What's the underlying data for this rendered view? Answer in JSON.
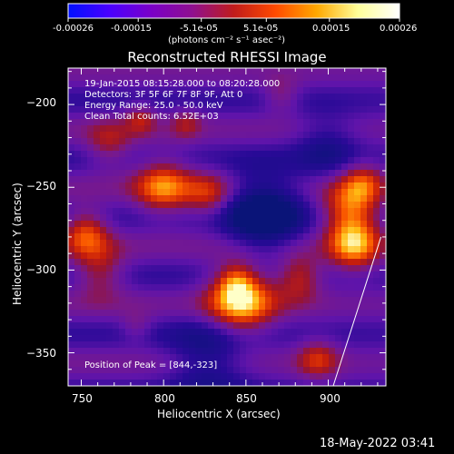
{
  "colorbar": {
    "tick_labels": [
      "-0.00026",
      "-0.00015",
      "-5.1e-05",
      "5.1e-05",
      "0.00015",
      "0.00026"
    ],
    "unit_label": "(photons cm⁻² s⁻¹ asec⁻²)",
    "colors": [
      "#0010ff",
      "#4a00ff",
      "#7a00c8",
      "#8f108f",
      "#c01c1c",
      "#ff4a00",
      "#ffa800",
      "#ffff9a",
      "#ffffff"
    ]
  },
  "title": "Reconstructed RHESSI Image",
  "annotations": {
    "time_range": "19-Jan-2015 08:15:28.000 to 08:20:28.000",
    "detectors": "Detectors: 3F 5F 6F 7F 8F 9F, Att 0",
    "energy_range": "Energy Range: 25.0 - 50.0 keV",
    "clean_counts": "Clean     Total counts: 6.52E+03",
    "peak_position": "Position of Peak = [844,-323]"
  },
  "footer_timestamp": "18-May-2022 03:41",
  "chart_data": {
    "type": "heatmap",
    "title": "Reconstructed RHESSI Image",
    "xlabel": "Heliocentric X (arcsec)",
    "ylabel": "Heliocentric Y (arcsec)",
    "xlim": [
      742,
      935
    ],
    "ylim": [
      -370,
      -178
    ],
    "x_ticks": [
      750,
      800,
      850,
      900
    ],
    "y_ticks": [
      -200,
      -250,
      -300,
      -350
    ],
    "x_tick_labels": [
      "750",
      "800",
      "850",
      "900"
    ],
    "y_tick_labels": [
      "−200",
      "−250",
      "−300",
      "−350"
    ],
    "value_range": [
      -0.00026,
      0.00026
    ],
    "peak": [
      844,
      -323
    ],
    "limb_line": [
      [
        932,
        -280
      ],
      [
        903,
        -370
      ]
    ],
    "grid": false
  }
}
